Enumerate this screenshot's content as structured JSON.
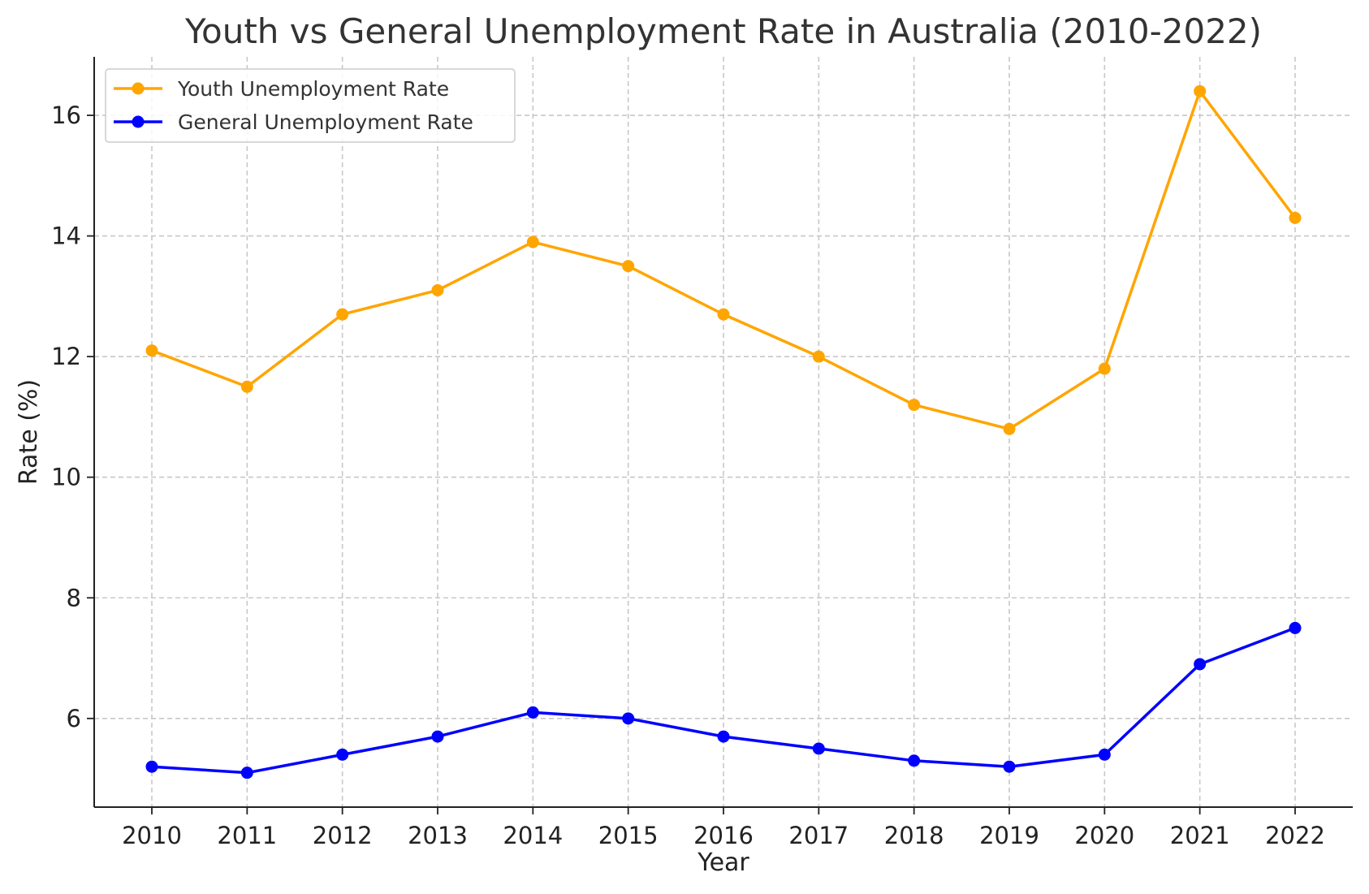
{
  "chart_data": {
    "type": "line",
    "title": "Youth vs General Unemployment Rate in Australia (2010-2022)",
    "xlabel": "Year",
    "ylabel": "Rate (%)",
    "categories": [
      "2010",
      "2011",
      "2012",
      "2013",
      "2014",
      "2015",
      "2016",
      "2017",
      "2018",
      "2019",
      "2020",
      "2021",
      "2022"
    ],
    "series": [
      {
        "name": "Youth Unemployment Rate",
        "color": "#FFA500",
        "values": [
          12.1,
          11.5,
          12.7,
          13.1,
          13.9,
          13.5,
          12.7,
          12.0,
          11.2,
          10.8,
          11.8,
          16.4,
          14.3
        ]
      },
      {
        "name": "General Unemployment Rate",
        "color": "#0000FF",
        "values": [
          5.2,
          5.1,
          5.4,
          5.7,
          6.1,
          6.0,
          5.7,
          5.5,
          5.3,
          5.2,
          5.4,
          6.9,
          7.5
        ]
      }
    ],
    "yticks": [
      "6",
      "8",
      "10",
      "12",
      "14",
      "16"
    ],
    "ylim": [
      4.53,
      16.97
    ],
    "grid": true,
    "grid_style": "dashed",
    "legend_position": "top-left",
    "marker": "circle"
  }
}
